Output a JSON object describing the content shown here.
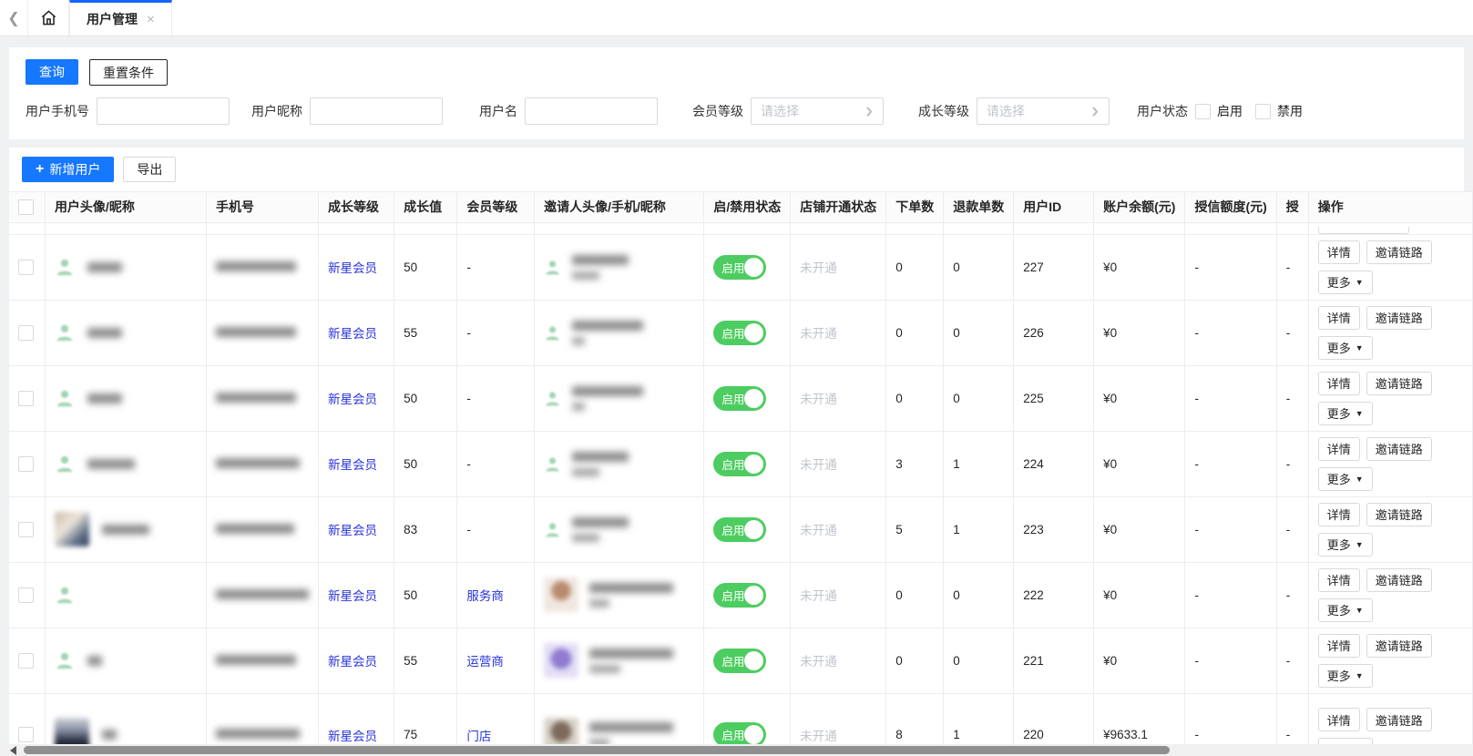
{
  "tabbar": {
    "active_tab": {
      "label": "用户管理",
      "close": "×"
    }
  },
  "filters": {
    "search_label": "查询",
    "reset_label": "重置条件",
    "phone_label": "用户手机号",
    "nickname_label": "用户昵称",
    "username_label": "用户名",
    "member_level_label": "会员等级",
    "member_level_placeholder": "请选择",
    "growth_level_label": "成长等级",
    "growth_level_placeholder": "请选择",
    "status_label": "用户状态",
    "status_options": [
      "启用",
      "禁用"
    ]
  },
  "toolbar": {
    "add_label": "新增用户",
    "export_label": "导出"
  },
  "table": {
    "columns": [
      "",
      "用户头像/昵称",
      "手机号",
      "成长等级",
      "成长值",
      "会员等级",
      "邀请人头像/手机/昵称",
      "启/禁用状态",
      "店铺开通状态",
      "下单数",
      "退款单数",
      "用户ID",
      "账户余额(元)",
      "授信额度(元)",
      "授",
      "操作"
    ],
    "actions": {
      "detail": "详情",
      "invite": "邀请链路",
      "more": "更多",
      "more_caret": "▼"
    },
    "rows": [
      {
        "avatar": "green",
        "nick_w": 38,
        "phone_w": 88,
        "growth_level": "新星会员",
        "growth_value": "50",
        "member_level": "-",
        "inviter": {
          "avatar": "green",
          "l1": 62,
          "l2": 30
        },
        "status": "启用",
        "shop_status": "未开通",
        "orders": "0",
        "refunds": "0",
        "user_id": "227",
        "balance": "¥0",
        "credit": "-",
        "extra": "-"
      },
      {
        "avatar": "green",
        "nick_w": 38,
        "phone_w": 88,
        "growth_level": "新星会员",
        "growth_value": "55",
        "member_level": "-",
        "inviter": {
          "avatar": "green",
          "l1": 78,
          "l2": 14
        },
        "status": "启用",
        "shop_status": "未开通",
        "orders": "0",
        "refunds": "0",
        "user_id": "226",
        "balance": "¥0",
        "credit": "-",
        "extra": "-"
      },
      {
        "avatar": "green",
        "nick_w": 38,
        "phone_w": 88,
        "growth_level": "新星会员",
        "growth_value": "50",
        "member_level": "-",
        "inviter": {
          "avatar": "green",
          "l1": 78,
          "l2": 14
        },
        "status": "启用",
        "shop_status": "未开通",
        "orders": "0",
        "refunds": "0",
        "user_id": "225",
        "balance": "¥0",
        "credit": "-",
        "extra": "-"
      },
      {
        "avatar": "green",
        "nick_w": 52,
        "phone_w": 92,
        "growth_level": "新星会员",
        "growth_value": "50",
        "member_level": "-",
        "inviter": {
          "avatar": "green",
          "l1": 62,
          "l2": 30
        },
        "status": "启用",
        "shop_status": "未开通",
        "orders": "3",
        "refunds": "1",
        "user_id": "224",
        "balance": "¥0",
        "credit": "-",
        "extra": "-"
      },
      {
        "avatar": "photo1",
        "nick_w": 52,
        "phone_w": 86,
        "growth_level": "新星会员",
        "growth_value": "83",
        "member_level": "-",
        "inviter": {
          "avatar": "green",
          "l1": 62,
          "l2": 30
        },
        "status": "启用",
        "shop_status": "未开通",
        "orders": "5",
        "refunds": "1",
        "user_id": "223",
        "balance": "¥0",
        "credit": "-",
        "extra": "-"
      },
      {
        "avatar": "green",
        "nick_w": 0,
        "phone_w": 102,
        "growth_level": "新星会员",
        "growth_value": "50",
        "member_level": "服务商",
        "inviter": {
          "avatar": "photo2",
          "l1": 92,
          "l2": 22
        },
        "status": "启用",
        "shop_status": "未开通",
        "orders": "0",
        "refunds": "0",
        "user_id": "222",
        "balance": "¥0",
        "credit": "-",
        "extra": "-"
      },
      {
        "avatar": "green",
        "nick_w": 16,
        "phone_w": 88,
        "growth_level": "新星会员",
        "growth_value": "55",
        "member_level": "运营商",
        "inviter": {
          "avatar": "photo3",
          "l1": 92,
          "l2": 34
        },
        "status": "启用",
        "shop_status": "未开通",
        "orders": "0",
        "refunds": "0",
        "user_id": "221",
        "balance": "¥0",
        "credit": "-",
        "extra": "-"
      },
      {
        "avatar": "photo4",
        "nick_w": 16,
        "phone_w": 92,
        "growth_level": "新星会员",
        "growth_value": "75",
        "member_level": "门店",
        "inviter": {
          "avatar": "photo5",
          "l1": 92,
          "l2": 22
        },
        "status": "启用",
        "shop_status": "未开通",
        "orders": "8",
        "refunds": "1",
        "user_id": "220",
        "balance": "¥9633.1",
        "credit": "-",
        "extra": "-"
      }
    ]
  },
  "colors": {
    "accent_blue": "#1677ff",
    "tab_indicator": "#1664ff",
    "link_blue": "#2833d8",
    "toggle_green": "#4dcd61"
  }
}
